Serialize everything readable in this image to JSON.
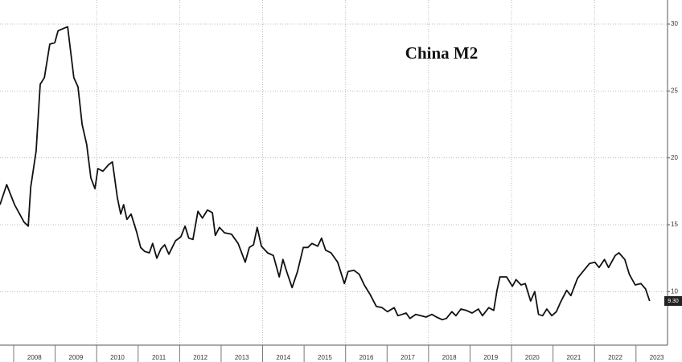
{
  "chart_data": {
    "type": "line",
    "title": "China M2",
    "series": [
      {
        "name": "China M2",
        "color": "#111111",
        "x": [
          2007.67,
          2007.83,
          2008.02,
          2008.25,
          2008.35,
          2008.41,
          2008.54,
          2008.64,
          2008.74,
          2008.87,
          2008.99,
          2009.07,
          2009.3,
          2009.45,
          2009.55,
          2009.65,
          2009.76,
          2009.86,
          2009.96,
          2010.03,
          2010.15,
          2010.29,
          2010.38,
          2010.5,
          2010.58,
          2010.65,
          2010.73,
          2010.83,
          2010.96,
          2011.06,
          2011.16,
          2011.27,
          2011.35,
          2011.45,
          2011.55,
          2011.64,
          2011.74,
          2011.9,
          2012.03,
          2012.13,
          2012.22,
          2012.32,
          2012.44,
          2012.55,
          2012.67,
          2012.79,
          2012.86,
          2012.96,
          2013.08,
          2013.25,
          2013.41,
          2013.58,
          2013.68,
          2013.78,
          2013.87,
          2013.97,
          2014.12,
          2014.26,
          2014.4,
          2014.49,
          2014.59,
          2014.71,
          2014.84,
          2014.98,
          2015.09,
          2015.19,
          2015.33,
          2015.42,
          2015.52,
          2015.65,
          2015.81,
          2015.97,
          2016.06,
          2016.2,
          2016.33,
          2016.45,
          2016.59,
          2016.74,
          2016.88,
          2017.01,
          2017.17,
          2017.26,
          2017.36,
          2017.46,
          2017.55,
          2017.69,
          2017.81,
          2017.94,
          2018.08,
          2018.19,
          2018.33,
          2018.43,
          2018.56,
          2018.66,
          2018.78,
          2018.91,
          2019.05,
          2019.2,
          2019.3,
          2019.45,
          2019.57,
          2019.65,
          2019.72,
          2019.88,
          2020.02,
          2020.11,
          2020.23,
          2020.33,
          2020.46,
          2020.56,
          2020.65,
          2020.75,
          2020.85,
          2020.97,
          2021.08,
          2021.18,
          2021.33,
          2021.43,
          2021.59,
          2021.72,
          2021.88,
          2022.01,
          2022.11,
          2022.24,
          2022.34,
          2022.5,
          2022.59,
          2022.73,
          2022.84,
          2022.98,
          2023.12,
          2023.23,
          2023.33
        ],
        "values": [
          16.5,
          18,
          16.5,
          15.2,
          14.9,
          17.8,
          20.5,
          25.5,
          26,
          28.5,
          28.6,
          29.5,
          29.8,
          26,
          25.3,
          22.5,
          21,
          18.5,
          17.7,
          19.2,
          19,
          19.5,
          19.7,
          17,
          15.8,
          16.5,
          15.4,
          15.8,
          14.5,
          13.3,
          13,
          12.9,
          13.6,
          12.5,
          13.2,
          13.5,
          12.8,
          13.8,
          14.1,
          14.9,
          14,
          13.9,
          16,
          15.5,
          16.1,
          15.9,
          14.2,
          14.8,
          14.4,
          14.3,
          13.6,
          12.2,
          13.3,
          13.5,
          14.8,
          13.4,
          12.9,
          12.7,
          11.1,
          12.4,
          11.4,
          10.3,
          11.5,
          13.3,
          13.3,
          13.6,
          13.4,
          14,
          13.1,
          12.9,
          12.2,
          10.6,
          11.5,
          11.6,
          11.3,
          10.5,
          9.8,
          8.9,
          8.8,
          8.5,
          8.8,
          8.2,
          8.3,
          8.4,
          8,
          8.3,
          8.2,
          8.1,
          8.3,
          8.1,
          7.9,
          8,
          8.5,
          8.2,
          8.7,
          8.6,
          8.4,
          8.7,
          8.2,
          8.8,
          8.6,
          10.1,
          11.1,
          11.1,
          10.4,
          10.9,
          10.5,
          10.6,
          9.3,
          10,
          8.3,
          8.2,
          8.7,
          8.2,
          8.5,
          9.2,
          10.1,
          9.7,
          11,
          11.5,
          12.1,
          12.2,
          11.8,
          12.4,
          11.8,
          12.7,
          12.9,
          12.4,
          11.3,
          10.5,
          10.6,
          10.2,
          9.3
        ]
      }
    ],
    "last_value_label": "9.30",
    "xlim": [
      2007.67,
      2023.76
    ],
    "xticks": [
      {
        "value": 2008.5,
        "label": "2008"
      },
      {
        "value": 2009.5,
        "label": "2009"
      },
      {
        "value": 2010.5,
        "label": "2010"
      },
      {
        "value": 2011.5,
        "label": "2011"
      },
      {
        "value": 2012.5,
        "label": "2012"
      },
      {
        "value": 2013.5,
        "label": "2013"
      },
      {
        "value": 2014.5,
        "label": "2014"
      },
      {
        "value": 2015.5,
        "label": "2015"
      },
      {
        "value": 2016.5,
        "label": "2016"
      },
      {
        "value": 2017.5,
        "label": "2017"
      },
      {
        "value": 2018.5,
        "label": "2018"
      },
      {
        "value": 2019.5,
        "label": "2019"
      },
      {
        "value": 2020.5,
        "label": "2020"
      },
      {
        "value": 2021.5,
        "label": "2021"
      },
      {
        "value": 2022.5,
        "label": "2022"
      },
      {
        "value": 2023.5,
        "label": "2023"
      }
    ],
    "xgrid": [
      2010,
      2012,
      2014,
      2016,
      2018,
      2020,
      2022
    ],
    "ylim": [
      6,
      31.8
    ],
    "yticks": [
      10,
      15,
      20,
      25,
      30
    ],
    "grid": true
  }
}
